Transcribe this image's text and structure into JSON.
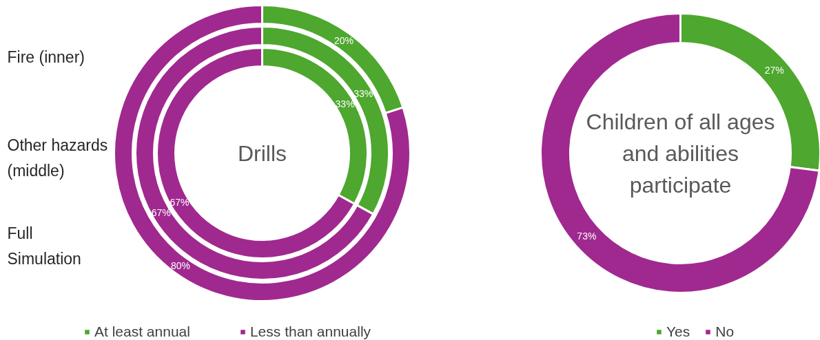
{
  "chart_data": [
    {
      "type": "donut",
      "title": "Drills",
      "categories": [
        "At least annual",
        "Less than annually"
      ],
      "colors": [
        "#4ea72e",
        "#a0298f"
      ],
      "series": [
        {
          "values": [
            33,
            67
          ],
          "value_labels": [
            "33%",
            "67%"
          ]
        },
        {
          "values": [
            33,
            67
          ],
          "value_labels": [
            "33%",
            "67%"
          ]
        },
        {
          "values": [
            20,
            80
          ],
          "value_labels": [
            "20%",
            "80%"
          ]
        }
      ],
      "annotations": [
        "Fire (inner)",
        "Other hazards (middle)",
        "Full Simulation"
      ],
      "legend": "bottom"
    },
    {
      "type": "donut",
      "title": "Children of all ages and abilities participate",
      "categories": [
        "Yes",
        "No"
      ],
      "colors": [
        "#4ea72e",
        "#a0298f"
      ],
      "values": [
        27,
        73
      ],
      "value_labels": [
        "27%",
        "73%"
      ],
      "legend": "bottom"
    }
  ]
}
